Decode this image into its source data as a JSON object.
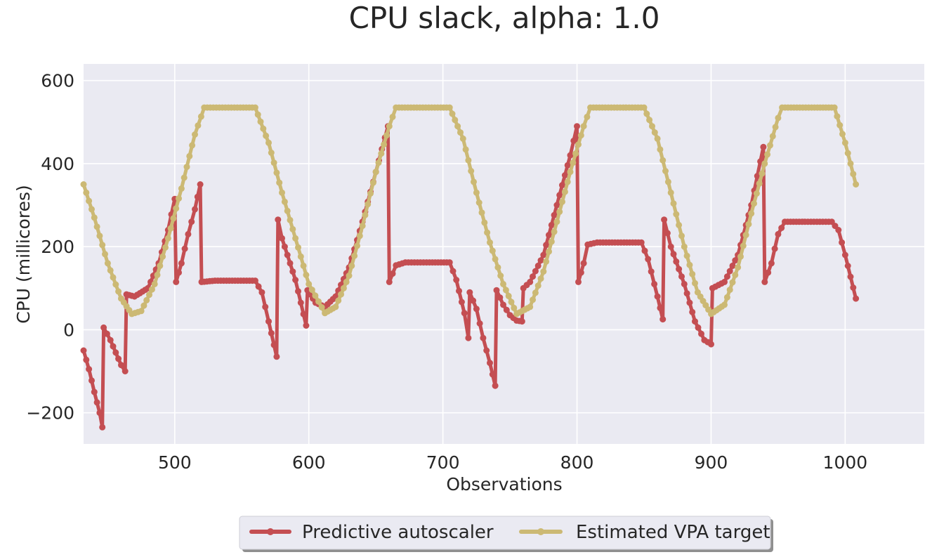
{
  "chart_data": {
    "type": "line",
    "title": "CPU slack, alpha: 1.0",
    "xlabel": "Observations",
    "ylabel": "CPU (millicores)",
    "xlim": [
      432,
      1059
    ],
    "ylim": [
      -275,
      640
    ],
    "x_ticks": [
      500,
      600,
      700,
      800,
      900,
      1000
    ],
    "y_ticks": [
      -200,
      0,
      200,
      400,
      600
    ],
    "x_tick_labels": [
      "500",
      "600",
      "700",
      "800",
      "900",
      "1000"
    ],
    "y_tick_labels": [
      "−200",
      "0",
      "200",
      "400",
      "600"
    ],
    "grid": true,
    "legend_position": "bottom-center-outside",
    "series": [
      {
        "name": "Predictive autoscaler",
        "color": "#c44e52",
        "points": [
          [
            432,
            -50
          ],
          [
            436,
            -95
          ],
          [
            440,
            -150
          ],
          [
            444,
            -200
          ],
          [
            446,
            -235
          ],
          [
            447,
            5
          ],
          [
            452,
            -25
          ],
          [
            456,
            -55
          ],
          [
            460,
            -85
          ],
          [
            463,
            -100
          ],
          [
            464,
            85
          ],
          [
            470,
            80
          ],
          [
            480,
            100
          ],
          [
            488,
            160
          ],
          [
            495,
            240
          ],
          [
            500,
            315
          ],
          [
            501,
            115
          ],
          [
            505,
            160
          ],
          [
            510,
            230
          ],
          [
            515,
            290
          ],
          [
            519,
            350
          ],
          [
            520,
            115
          ],
          [
            530,
            118
          ],
          [
            545,
            118
          ],
          [
            560,
            118
          ],
          [
            565,
            90
          ],
          [
            570,
            20
          ],
          [
            576,
            -65
          ],
          [
            577,
            265
          ],
          [
            580,
            220
          ],
          [
            590,
            120
          ],
          [
            598,
            10
          ],
          [
            599,
            95
          ],
          [
            605,
            65
          ],
          [
            612,
            55
          ],
          [
            620,
            80
          ],
          [
            630,
            150
          ],
          [
            640,
            260
          ],
          [
            650,
            380
          ],
          [
            659,
            490
          ],
          [
            660,
            115
          ],
          [
            665,
            155
          ],
          [
            672,
            162
          ],
          [
            690,
            162
          ],
          [
            705,
            162
          ],
          [
            710,
            120
          ],
          [
            716,
            40
          ],
          [
            719,
            -20
          ],
          [
            720,
            90
          ],
          [
            725,
            50
          ],
          [
            730,
            -20
          ],
          [
            735,
            -80
          ],
          [
            739,
            -135
          ],
          [
            740,
            95
          ],
          [
            745,
            60
          ],
          [
            750,
            35
          ],
          [
            755,
            22
          ],
          [
            759,
            20
          ],
          [
            760,
            100
          ],
          [
            765,
            115
          ],
          [
            775,
            180
          ],
          [
            785,
            300
          ],
          [
            795,
            420
          ],
          [
            800,
            490
          ],
          [
            801,
            115
          ],
          [
            805,
            160
          ],
          [
            808,
            205
          ],
          [
            815,
            210
          ],
          [
            835,
            210
          ],
          [
            848,
            210
          ],
          [
            853,
            170
          ],
          [
            860,
            80
          ],
          [
            864,
            25
          ],
          [
            865,
            265
          ],
          [
            870,
            200
          ],
          [
            880,
            110
          ],
          [
            888,
            20
          ],
          [
            895,
            -25
          ],
          [
            900,
            -35
          ],
          [
            901,
            100
          ],
          [
            910,
            115
          ],
          [
            920,
            180
          ],
          [
            930,
            300
          ],
          [
            939,
            440
          ],
          [
            940,
            115
          ],
          [
            945,
            160
          ],
          [
            950,
            230
          ],
          [
            955,
            260
          ],
          [
            970,
            260
          ],
          [
            990,
            260
          ],
          [
            995,
            240
          ],
          [
            1000,
            180
          ],
          [
            1008,
            75
          ]
        ]
      },
      {
        "name": "Estimated VPA target",
        "color": "#ccb974",
        "points": [
          [
            432,
            350
          ],
          [
            440,
            270
          ],
          [
            450,
            160
          ],
          [
            460,
            75
          ],
          [
            468,
            38
          ],
          [
            475,
            45
          ],
          [
            485,
            110
          ],
          [
            495,
            220
          ],
          [
            505,
            340
          ],
          [
            515,
            470
          ],
          [
            522,
            535
          ],
          [
            540,
            535
          ],
          [
            560,
            535
          ],
          [
            570,
            450
          ],
          [
            580,
            330
          ],
          [
            590,
            220
          ],
          [
            600,
            110
          ],
          [
            612,
            40
          ],
          [
            620,
            55
          ],
          [
            630,
            130
          ],
          [
            640,
            250
          ],
          [
            650,
            380
          ],
          [
            660,
            490
          ],
          [
            665,
            535
          ],
          [
            685,
            535
          ],
          [
            705,
            535
          ],
          [
            715,
            460
          ],
          [
            725,
            330
          ],
          [
            735,
            210
          ],
          [
            745,
            110
          ],
          [
            755,
            38
          ],
          [
            765,
            55
          ],
          [
            775,
            140
          ],
          [
            785,
            260
          ],
          [
            795,
            380
          ],
          [
            805,
            490
          ],
          [
            810,
            535
          ],
          [
            830,
            535
          ],
          [
            850,
            535
          ],
          [
            860,
            460
          ],
          [
            870,
            330
          ],
          [
            880,
            200
          ],
          [
            890,
            90
          ],
          [
            900,
            38
          ],
          [
            910,
            60
          ],
          [
            920,
            150
          ],
          [
            930,
            280
          ],
          [
            940,
            400
          ],
          [
            950,
            510
          ],
          [
            953,
            535
          ],
          [
            975,
            535
          ],
          [
            992,
            535
          ],
          [
            1000,
            450
          ],
          [
            1008,
            350
          ]
        ]
      }
    ]
  }
}
